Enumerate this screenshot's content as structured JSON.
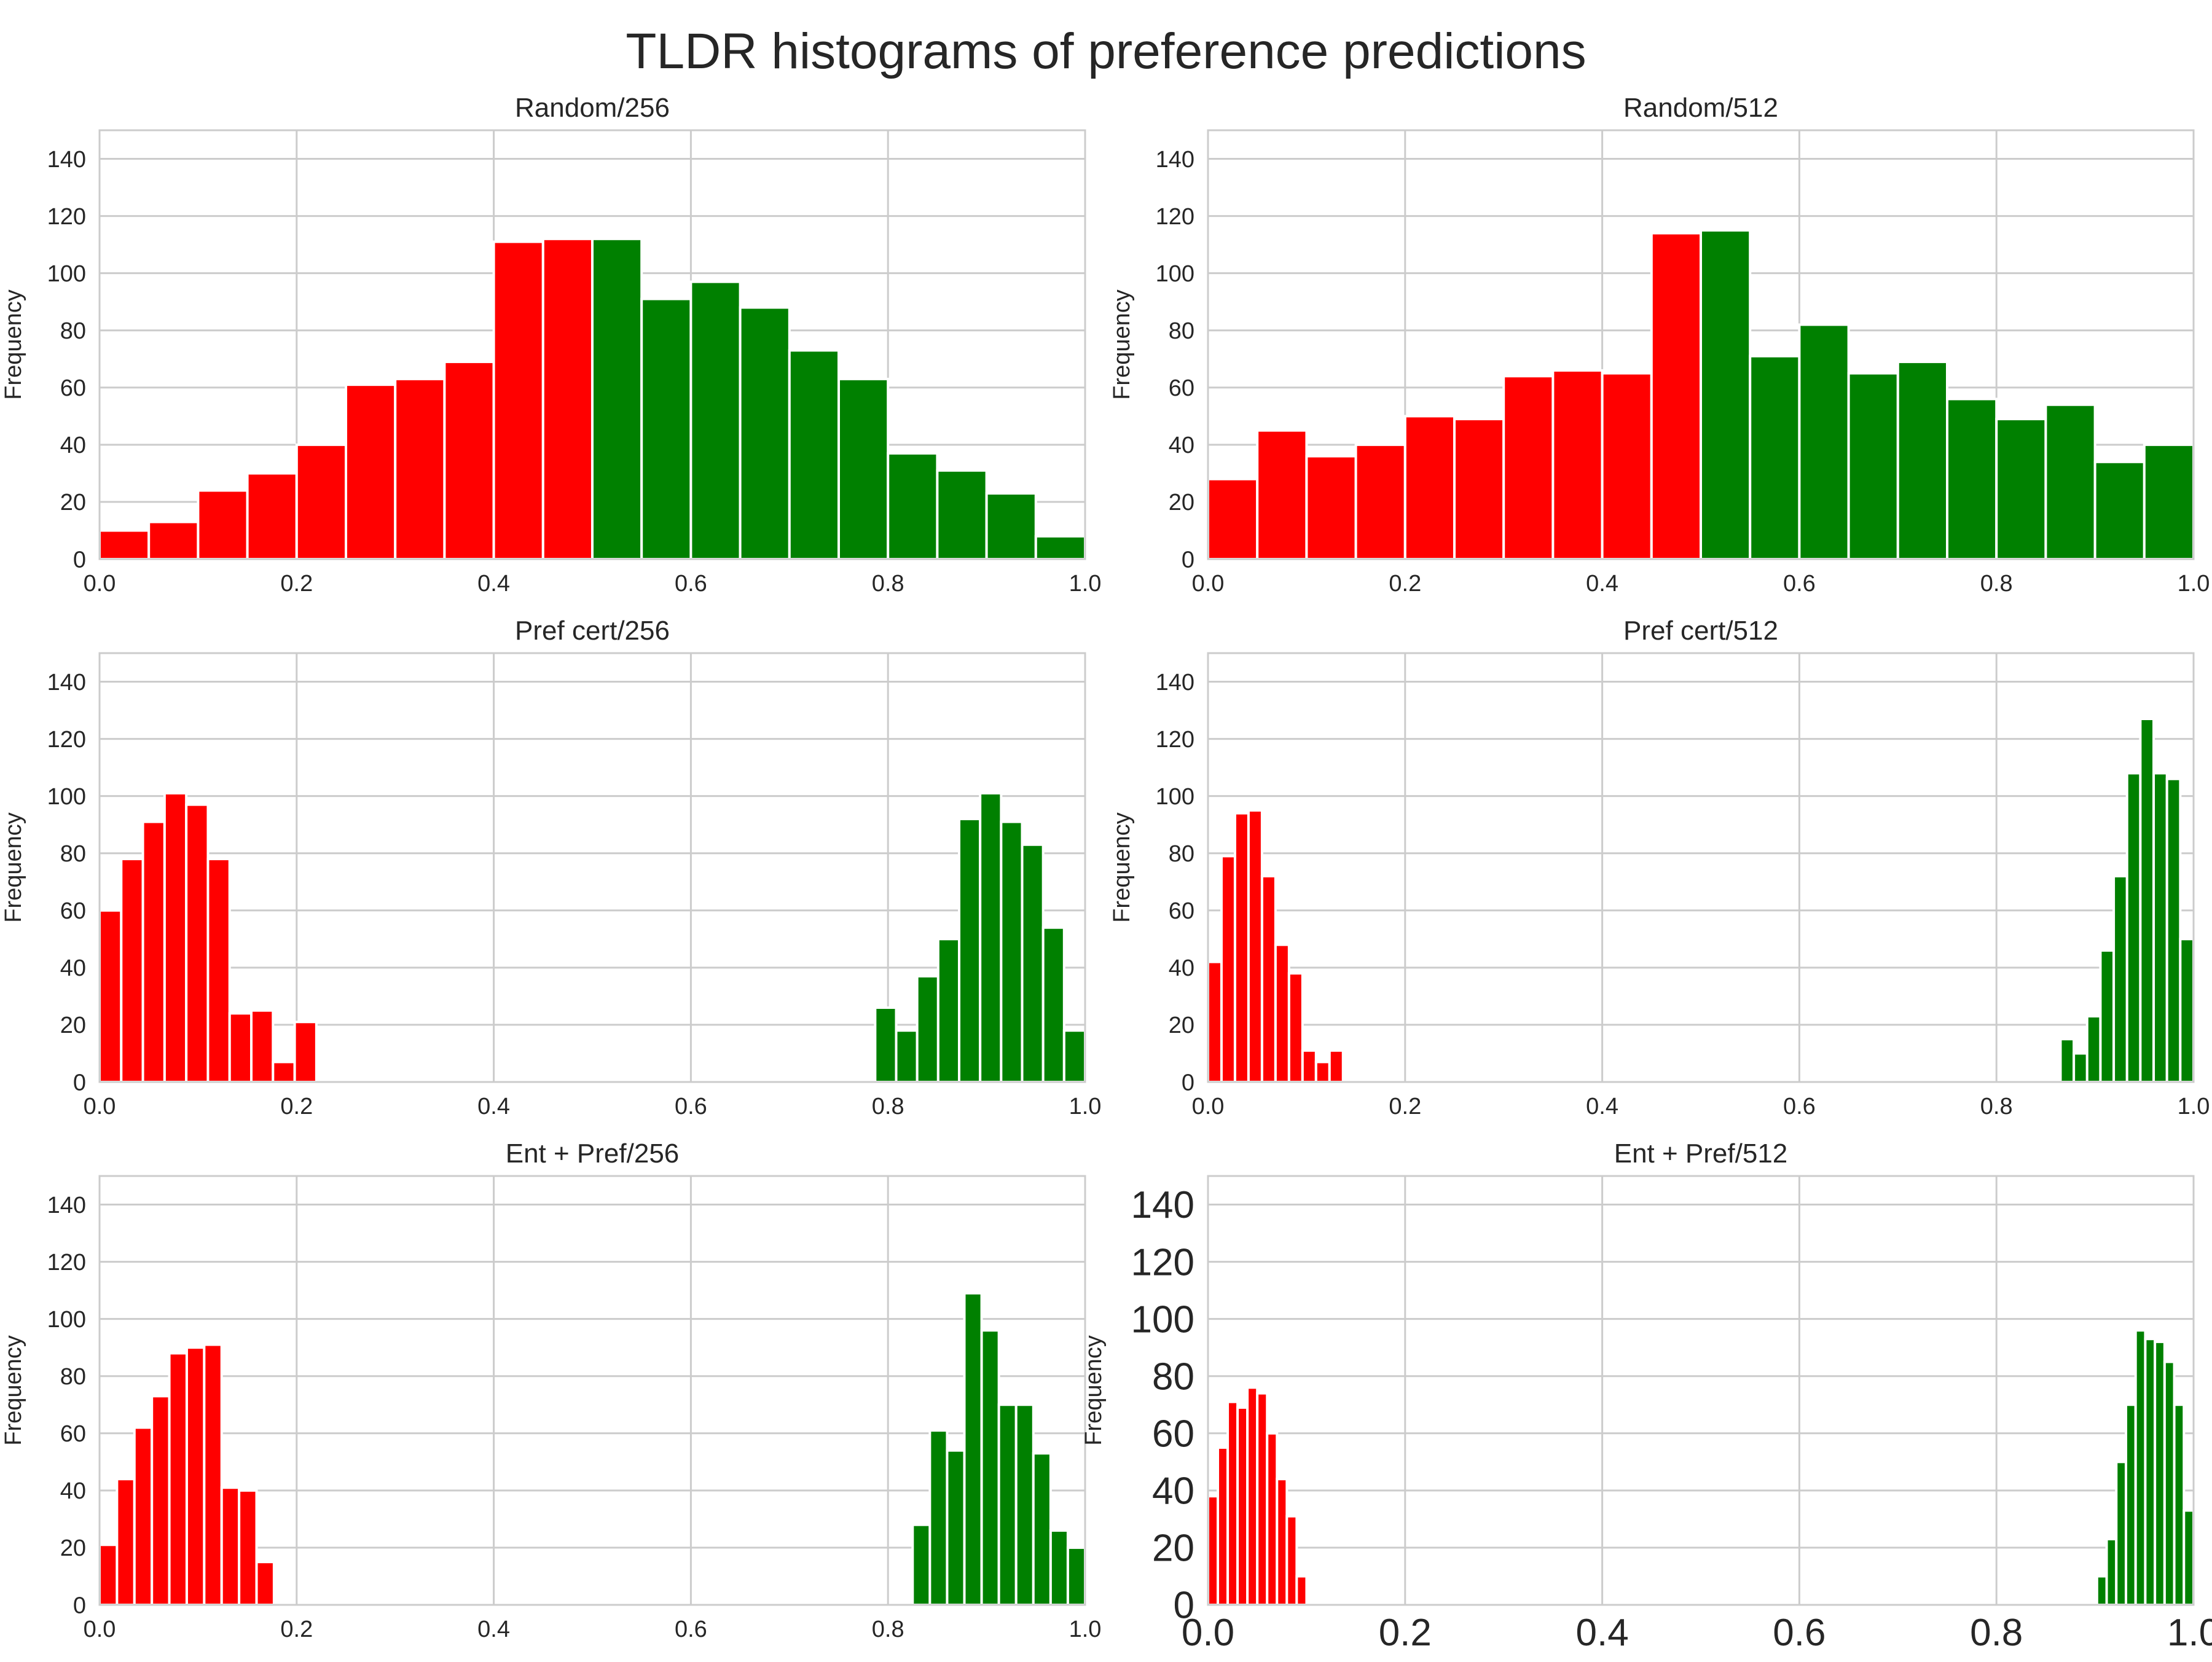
{
  "figure": {
    "suptitle": "TLDR histograms of preference predictions",
    "colors": {
      "below_half": "#ff0000",
      "above_half": "#008000",
      "grid": "#cccccc",
      "frame": "#cccccc",
      "text": "#262626"
    }
  },
  "chart_data": [
    {
      "type": "bar",
      "title": "Random/256",
      "xlabel": "",
      "ylabel": "Frequency",
      "xlim": [
        0,
        1.0
      ],
      "ylim": [
        0,
        150
      ],
      "xticks": [
        "0.0",
        "0.2",
        "0.4",
        "0.6",
        "0.8",
        "1.0"
      ],
      "yticks": [
        "0",
        "20",
        "40",
        "60",
        "80",
        "100",
        "120",
        "140"
      ],
      "grid": true,
      "bins_range": [
        0.0,
        1.0
      ],
      "values": [
        10,
        13,
        24,
        30,
        40,
        61,
        63,
        69,
        111,
        112,
        112,
        91,
        97,
        88,
        73,
        63,
        37,
        31,
        23,
        8
      ],
      "split": 0.5
    },
    {
      "type": "bar",
      "title": "Random/512",
      "xlabel": "",
      "ylabel": "Frequency",
      "xlim": [
        0,
        1.0
      ],
      "ylim": [
        0,
        150
      ],
      "xticks": [
        "0.0",
        "0.2",
        "0.4",
        "0.6",
        "0.8",
        "1.0"
      ],
      "yticks": [
        "0",
        "20",
        "40",
        "60",
        "80",
        "100",
        "120",
        "140"
      ],
      "grid": true,
      "bins_range": [
        0.0,
        1.0
      ],
      "values": [
        28,
        45,
        36,
        40,
        50,
        49,
        64,
        66,
        65,
        114,
        115,
        71,
        82,
        65,
        69,
        56,
        49,
        54,
        34,
        40
      ],
      "split": 0.5
    },
    {
      "type": "bar",
      "title": "Pref cert/256",
      "xlabel": "",
      "ylabel": "Frequency",
      "xlim": [
        0,
        1.0
      ],
      "ylim": [
        0,
        150
      ],
      "xticks": [
        "0.0",
        "0.2",
        "0.4",
        "0.6",
        "0.8",
        "1.0"
      ],
      "yticks": [
        "0",
        "20",
        "40",
        "60",
        "80",
        "100",
        "120",
        "140"
      ],
      "grid": true,
      "groups": [
        {
          "range": [
            0.0,
            0.22
          ],
          "values": [
            60,
            78,
            91,
            101,
            97,
            78,
            24,
            25,
            7,
            21
          ]
        },
        {
          "range": [
            0.787,
            1.0
          ],
          "values": [
            26,
            18,
            37,
            50,
            92,
            101,
            91,
            83,
            54,
            18
          ]
        }
      ]
    },
    {
      "type": "bar",
      "title": "Pref cert/512",
      "xlabel": "",
      "ylabel": "Frequency",
      "xlim": [
        0,
        1.0
      ],
      "ylim": [
        0,
        150
      ],
      "xticks": [
        "0.0",
        "0.2",
        "0.4",
        "0.6",
        "0.8",
        "1.0"
      ],
      "yticks": [
        "0",
        "20",
        "40",
        "60",
        "80",
        "100",
        "120",
        "140"
      ],
      "grid": true,
      "groups": [
        {
          "range": [
            0.0,
            0.137
          ],
          "values": [
            42,
            79,
            94,
            95,
            72,
            48,
            38,
            11,
            7,
            11
          ]
        },
        {
          "range": [
            0.865,
            1.0
          ],
          "values": [
            15,
            10,
            23,
            46,
            72,
            108,
            127,
            108,
            106,
            50
          ]
        }
      ]
    },
    {
      "type": "bar",
      "title": "Ent + Pref/256",
      "xlabel": "",
      "ylabel": "Frequency",
      "xlim": [
        0,
        1.0
      ],
      "ylim": [
        0,
        150
      ],
      "xticks": [
        "0.0",
        "0.2",
        "0.4",
        "0.6",
        "0.8",
        "1.0"
      ],
      "yticks": [
        "0",
        "20",
        "40",
        "60",
        "80",
        "100",
        "120",
        "140"
      ],
      "grid": true,
      "groups": [
        {
          "range": [
            0.0,
            0.177
          ],
          "values": [
            21,
            44,
            62,
            73,
            88,
            90,
            91,
            41,
            40,
            15
          ]
        },
        {
          "range": [
            0.825,
            1.0
          ],
          "values": [
            28,
            61,
            54,
            109,
            96,
            70,
            70,
            53,
            26,
            20
          ]
        }
      ]
    },
    {
      "type": "bar",
      "title": "Ent + Pref/512",
      "xlabel": "",
      "ylabel": "Frequency",
      "xlim": [
        0,
        1.0
      ],
      "ylim": [
        0,
        150
      ],
      "xticks": [
        "0.0",
        "0.2",
        "0.4",
        "0.6",
        "0.8",
        "1.0"
      ],
      "yticks": [
        "0",
        "20",
        "40",
        "60",
        "80",
        "100",
        "120",
        "140"
      ],
      "grid": true,
      "large_ticks": true,
      "groups": [
        {
          "range": [
            0.0,
            0.1
          ],
          "values": [
            38,
            55,
            71,
            69,
            76,
            74,
            60,
            44,
            31,
            10
          ]
        },
        {
          "range": [
            0.902,
            1.0
          ],
          "values": [
            10,
            23,
            50,
            70,
            96,
            93,
            92,
            85,
            70,
            33
          ]
        }
      ]
    }
  ]
}
